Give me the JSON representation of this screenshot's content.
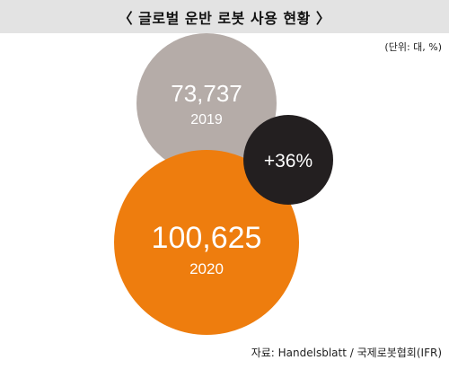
{
  "header": {
    "title": "〈 글로벌 운반 로봇 사용 현황 〉"
  },
  "chart_data": {
    "type": "bubble",
    "unit_note": "(단위: 대, %)",
    "bubbles": [
      {
        "year": "2019",
        "value": 73737,
        "value_label": "73,737",
        "color": "#b5aca8"
      },
      {
        "year": "2020",
        "value": 100625,
        "value_label": "100,625",
        "color": "#ee7d0e"
      }
    ],
    "growth": {
      "label": "+36%",
      "color": "#231f20"
    }
  },
  "source": "자료: Handelsblatt / 국제로봇협회(IFR)"
}
